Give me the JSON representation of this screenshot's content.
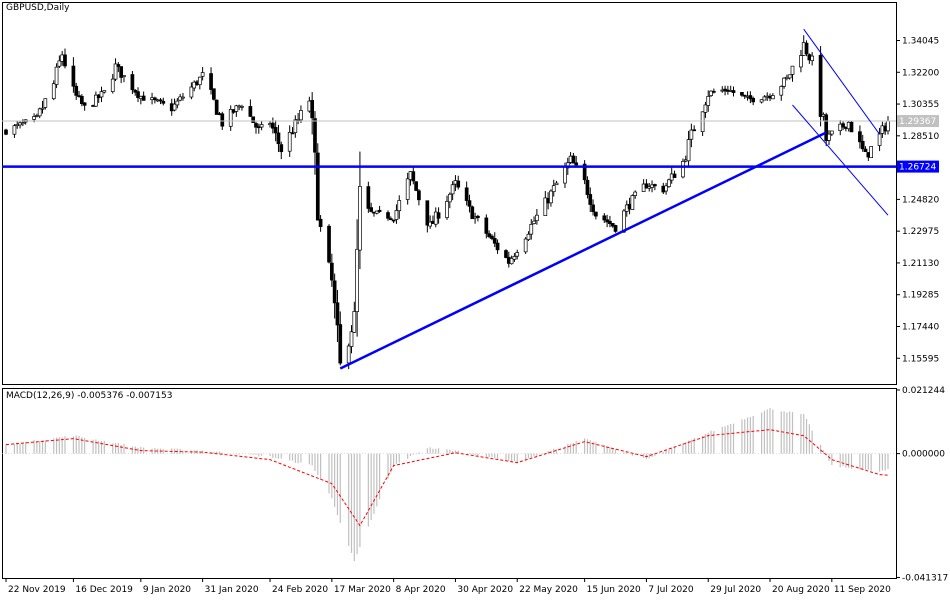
{
  "colors": {
    "background": "#ffffff",
    "candle": "#000000",
    "trendline": "#0000ff",
    "support_line": "#0000ff",
    "price_tag_bg": "#0000ff",
    "price_tag_text": "#ffffff",
    "current_tag_bg": "#c0c0c0",
    "current_line": "#c0c0c0",
    "macd_hist": "#c0c0c0",
    "macd_signal": "#ff0000"
  },
  "header": {
    "symbol_label": "GBPUSD,Daily"
  },
  "macd_panel": {
    "label": "MACD(12,26,9) -0.005376 -0.007153"
  },
  "chart_data": [
    {
      "type": "candlestick",
      "title": "GBPUSD,Daily",
      "ylim": [
        1.141,
        1.3628
      ],
      "y_ticks": [
        "1.34045",
        "1.32200",
        "1.30355",
        "1.28510",
        "1.24820",
        "1.22975",
        "1.21130",
        "1.19285",
        "1.17440",
        "1.15595"
      ],
      "x_ticks": [
        "22 Nov 2019",
        "16 Dec 2019",
        "9 Jan 2020",
        "31 Jan 2020",
        "24 Feb 2020",
        "17 Mar 2020",
        "8 Apr 2020",
        "30 Apr 2020",
        "22 May 2020",
        "15 Jun 2020",
        "7 Jul 2020",
        "29 Jul 2020",
        "20 Aug 2020",
        "11 Sep 2020"
      ],
      "current_price": "1.29367",
      "support_level": "1.26724",
      "close_path": [
        [
          "22 Nov 2019",
          1.288
        ],
        [
          "3 Dec 2019",
          1.295
        ],
        [
          "9 Dec 2019",
          1.315
        ],
        [
          "12 Dec 2019",
          1.333
        ],
        [
          "16 Dec 2019",
          1.31
        ],
        [
          "20 Dec 2019",
          1.301
        ],
        [
          "27 Dec 2019",
          1.31
        ],
        [
          "31 Dec 2019",
          1.325
        ],
        [
          "9 Jan 2020",
          1.308
        ],
        [
          "20 Jan 2020",
          1.301
        ],
        [
          "31 Jan 2020",
          1.32
        ],
        [
          "7 Feb 2020",
          1.293
        ],
        [
          "14 Feb 2020",
          1.304
        ],
        [
          "20 Feb 2020",
          1.288
        ],
        [
          "24 Feb 2020",
          1.293
        ],
        [
          "28 Feb 2020",
          1.277
        ],
        [
          "9 Mar 2020",
          1.306
        ],
        [
          "13 Mar 2020",
          1.228
        ],
        [
          "17 Mar 2020",
          1.2
        ],
        [
          "20 Mar 2020",
          1.149
        ],
        [
          "25 Mar 2020",
          1.18
        ],
        [
          "27 Mar 2020",
          1.245
        ],
        [
          "31 Mar 2020",
          1.24
        ],
        [
          "8 Apr 2020",
          1.238
        ],
        [
          "14 Apr 2020",
          1.262
        ],
        [
          "21 Apr 2020",
          1.232
        ],
        [
          "30 Apr 2020",
          1.257
        ],
        [
          "5 May 2020",
          1.242
        ],
        [
          "14 May 2020",
          1.222
        ],
        [
          "19 May 2020",
          1.212
        ],
        [
          "22 May 2020",
          1.22
        ],
        [
          "1 Jun 2020",
          1.246
        ],
        [
          "10 Jun 2020",
          1.271
        ],
        [
          "15 Jun 2020",
          1.258
        ],
        [
          "19 Jun 2020",
          1.24
        ],
        [
          "26 Jun 2020",
          1.232
        ],
        [
          "1 Jul 2020",
          1.246
        ],
        [
          "7 Jul 2020",
          1.257
        ],
        [
          "13 Jul 2020",
          1.254
        ],
        [
          "20 Jul 2020",
          1.27
        ],
        [
          "24 Jul 2020",
          1.29
        ],
        [
          "29 Jul 2020",
          1.31
        ],
        [
          "5 Aug 2020",
          1.312
        ],
        [
          "12 Aug 2020",
          1.306
        ],
        [
          "20 Aug 2020",
          1.309
        ],
        [
          "26 Aug 2020",
          1.318
        ],
        [
          "1 Sep 2020",
          1.338
        ],
        [
          "4 Sep 2020",
          1.328
        ],
        [
          "9 Sep 2020",
          1.283
        ],
        [
          "11 Sep 2020",
          1.286
        ],
        [
          "17 Sep 2020",
          1.293
        ],
        [
          "23 Sep 2020",
          1.273
        ],
        [
          "28 Sep 2020",
          1.285
        ],
        [
          "1 Oct 2020",
          1.2937
        ]
      ],
      "trendlines": [
        {
          "label": "rising support",
          "from": [
            "20 Mar 2020",
            1.15
          ],
          "to": [
            "9 Sep 2020",
            1.287
          ]
        },
        {
          "label": "horizontal support",
          "level": 1.26724
        },
        {
          "label": "falling channel upper",
          "from": [
            "1 Sep 2020",
            1.347
          ],
          "to": [
            "28 Sep 2020",
            1.286
          ]
        },
        {
          "label": "falling channel lower",
          "from": [
            "28 Aug 2020",
            1.303
          ],
          "to": [
            "1 Oct 2020",
            1.239
          ]
        }
      ]
    },
    {
      "type": "bar",
      "title": "MACD(12,26,9) -0.005376 -0.007153",
      "ylim": [
        -0.0415,
        0.0219
      ],
      "y_ticks": [
        "0.021244",
        "0.000000",
        "-0.041317"
      ],
      "series": [
        {
          "name": "MACD",
          "type": "histogram",
          "path": [
            [
              "22 Nov 2019",
              0.003
            ],
            [
              "16 Dec 2019",
              0.006
            ],
            [
              "9 Jan 2020",
              0.002
            ],
            [
              "31 Jan 2020",
              0.001
            ],
            [
              "24 Feb 2020",
              -0.001
            ],
            [
              "10 Mar 2020",
              -0.004
            ],
            [
              "17 Mar 2020",
              -0.015
            ],
            [
              "25 Mar 2020",
              -0.036
            ],
            [
              "8 Apr 2020",
              -0.004
            ],
            [
              "20 Apr 2020",
              0.002
            ],
            [
              "30 Apr 2020",
              0.001
            ],
            [
              "22 May 2020",
              -0.003
            ],
            [
              "15 Jun 2020",
              0.005
            ],
            [
              "7 Jul 2020",
              -0.002
            ],
            [
              "29 Jul 2020",
              0.007
            ],
            [
              "20 Aug 2020",
              0.015
            ],
            [
              "1 Sep 2020",
              0.013
            ],
            [
              "11 Sep 2020",
              -0.004
            ],
            [
              "28 Sep 2020",
              -0.006
            ],
            [
              "1 Oct 2020",
              -0.0054
            ]
          ]
        },
        {
          "name": "Signal",
          "type": "line",
          "path": [
            [
              "22 Nov 2019",
              0.003
            ],
            [
              "16 Dec 2019",
              0.005
            ],
            [
              "9 Jan 2020",
              0.001
            ],
            [
              "31 Jan 2020",
              0.0005
            ],
            [
              "24 Feb 2020",
              -0.002
            ],
            [
              "17 Mar 2020",
              -0.01
            ],
            [
              "27 Mar 2020",
              -0.024
            ],
            [
              "8 Apr 2020",
              -0.004
            ],
            [
              "30 Apr 2020",
              0.0003
            ],
            [
              "22 May 2020",
              -0.003
            ],
            [
              "15 Jun 2020",
              0.004
            ],
            [
              "7 Jul 2020",
              -0.001
            ],
            [
              "29 Jul 2020",
              0.006
            ],
            [
              "20 Aug 2020",
              0.008
            ],
            [
              "1 Sep 2020",
              0.006
            ],
            [
              "11 Sep 2020",
              -0.002
            ],
            [
              "28 Sep 2020",
              -0.007
            ],
            [
              "1 Oct 2020",
              -0.0072
            ]
          ]
        }
      ]
    }
  ]
}
